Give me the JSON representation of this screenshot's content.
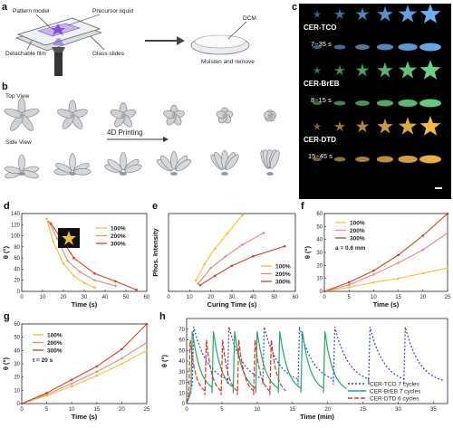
{
  "panels": {
    "a": {
      "letter": "a",
      "pattern_model": "Pattern model",
      "precursor_liquid": "Precursor liquid",
      "detachable_film": "Detachable film",
      "glass_slides": "Glass slides",
      "dcm": "DCM",
      "moisten_remove": "Moisten and remove"
    },
    "b": {
      "letter": "b",
      "top_view": "Top View",
      "side_view": "Side View",
      "arrow_label": "4D Printing"
    },
    "c": {
      "letter": "c",
      "rows": [
        {
          "name": "CER-TCO",
          "time": "7~35 s",
          "color": "#6fb8ff"
        },
        {
          "name": "CER-BrEB",
          "time": "8~15 s",
          "color": "#6fe08a"
        },
        {
          "name": "CER-DTD",
          "time": "15~45 s",
          "color": "#ffc24a"
        }
      ]
    }
  },
  "legend_labels": [
    "100%",
    "200%",
    "300%"
  ],
  "series_colors": [
    "#f2c230",
    "#e58a86",
    "#cc4422"
  ],
  "chart_data": [
    {
      "panel": "d",
      "type": "line",
      "xlabel": "Time (s)",
      "ylabel": "θ (°)",
      "xlim": [
        0,
        60
      ],
      "ylim": [
        0,
        140
      ],
      "xticks": [
        0,
        10,
        20,
        30,
        40,
        50,
        60
      ],
      "yticks": [
        0,
        20,
        40,
        60,
        80,
        100,
        120,
        140
      ],
      "series": [
        {
          "name": "100%",
          "x": [
            12,
            15,
            20,
            25,
            30,
            35
          ],
          "y": [
            130,
            90,
            50,
            28,
            15,
            7
          ]
        },
        {
          "name": "200%",
          "x": [
            13,
            17,
            22,
            28,
            35,
            45
          ],
          "y": [
            125,
            95,
            55,
            35,
            20,
            10
          ]
        },
        {
          "name": "300%",
          "x": [
            14,
            18,
            25,
            35,
            45,
            55
          ],
          "y": [
            122,
            100,
            60,
            32,
            18,
            3
          ]
        }
      ]
    },
    {
      "panel": "e",
      "type": "line",
      "xlabel": "Curing Time (s)",
      "ylabel": "Phos. Intensity",
      "xlim": [
        0,
        60
      ],
      "ylim": [
        0,
        100
      ],
      "xticks": [
        0,
        10,
        20,
        30,
        40,
        50,
        60
      ],
      "series": [
        {
          "name": "100%",
          "x": [
            13,
            17,
            22,
            28,
            35
          ],
          "y": [
            14,
            35,
            55,
            75,
            98
          ]
        },
        {
          "name": "200%",
          "x": [
            14,
            20,
            27,
            35,
            45
          ],
          "y": [
            10,
            30,
            45,
            60,
            75
          ]
        },
        {
          "name": "300%",
          "x": [
            15,
            22,
            30,
            40,
            55
          ],
          "y": [
            8,
            20,
            33,
            45,
            58
          ]
        }
      ]
    },
    {
      "panel": "f",
      "type": "line",
      "xlabel": "Time (s)",
      "ylabel": "θ (°)",
      "annotation": "a = 0.6 mm",
      "xlim": [
        0,
        25
      ],
      "ylim": [
        0,
        60
      ],
      "xticks": [
        0,
        5,
        10,
        15,
        20,
        25
      ],
      "yticks": [
        0,
        10,
        20,
        30,
        40,
        50,
        60
      ],
      "series": [
        {
          "name": "100%",
          "x": [
            0,
            5,
            10,
            15,
            20,
            25
          ],
          "y": [
            0,
            3,
            7,
            10,
            14,
            18
          ]
        },
        {
          "name": "200%",
          "x": [
            0,
            5,
            10,
            15,
            20,
            25
          ],
          "y": [
            0,
            5,
            13,
            22,
            32,
            45
          ]
        },
        {
          "name": "300%",
          "x": [
            0,
            5,
            10,
            15,
            20,
            25
          ],
          "y": [
            0,
            7,
            16,
            28,
            43,
            60
          ]
        }
      ]
    },
    {
      "panel": "g",
      "type": "line",
      "xlabel": "Time (s)",
      "ylabel": "θ (°)",
      "annotation": "t = 20 s",
      "xlim": [
        0,
        25
      ],
      "ylim": [
        0,
        60
      ],
      "xticks": [
        0,
        5,
        10,
        15,
        20,
        25
      ],
      "yticks": [
        0,
        10,
        20,
        30,
        40,
        50,
        60
      ],
      "series": [
        {
          "name": "100%",
          "x": [
            0,
            5,
            10,
            15,
            20,
            25
          ],
          "y": [
            0,
            6,
            13,
            21,
            30,
            40
          ]
        },
        {
          "name": "200%",
          "x": [
            0,
            5,
            10,
            15,
            20,
            25
          ],
          "y": [
            0,
            7,
            15,
            24,
            34,
            46
          ]
        },
        {
          "name": "300%",
          "x": [
            0,
            5,
            10,
            15,
            20,
            25
          ],
          "y": [
            0,
            8,
            18,
            28,
            41,
            60
          ]
        }
      ]
    },
    {
      "panel": "h",
      "type": "line",
      "xlabel": "Time (min)",
      "ylabel": "θ (°)",
      "xlim": [
        0,
        37
      ],
      "ylim": [
        0,
        80
      ],
      "xticks": [
        0,
        5,
        10,
        15,
        20,
        25,
        30,
        35
      ],
      "yticks": [
        0,
        10,
        20,
        30,
        40,
        50,
        60,
        70
      ],
      "series": [
        {
          "name": "CER-TCO 7 cycles",
          "color": "#3344bb",
          "dash": "2,2",
          "peaks": [
            1.0,
            6.0,
            11.0,
            16.0,
            21.0,
            26.0,
            31.0
          ],
          "peak_value": 72,
          "decay": 4.5,
          "floor": 18
        },
        {
          "name": "CER-BrEB 7 cycles",
          "color": "#22aa66",
          "dash": "",
          "peaks": [
            0.8,
            3.8,
            6.8,
            10.0,
            13.2,
            16.4,
            19.6
          ],
          "peak_value": 68,
          "decay": 2.6,
          "floor": 10
        },
        {
          "name": "CER-DTD 6 cycles",
          "color": "#dd3322",
          "dash": "5,2",
          "peaks": [
            0.5,
            2.8,
            5.1,
            7.4,
            9.7,
            12.0
          ],
          "peak_value": 60,
          "decay": 1.8,
          "floor": 8
        }
      ]
    }
  ]
}
